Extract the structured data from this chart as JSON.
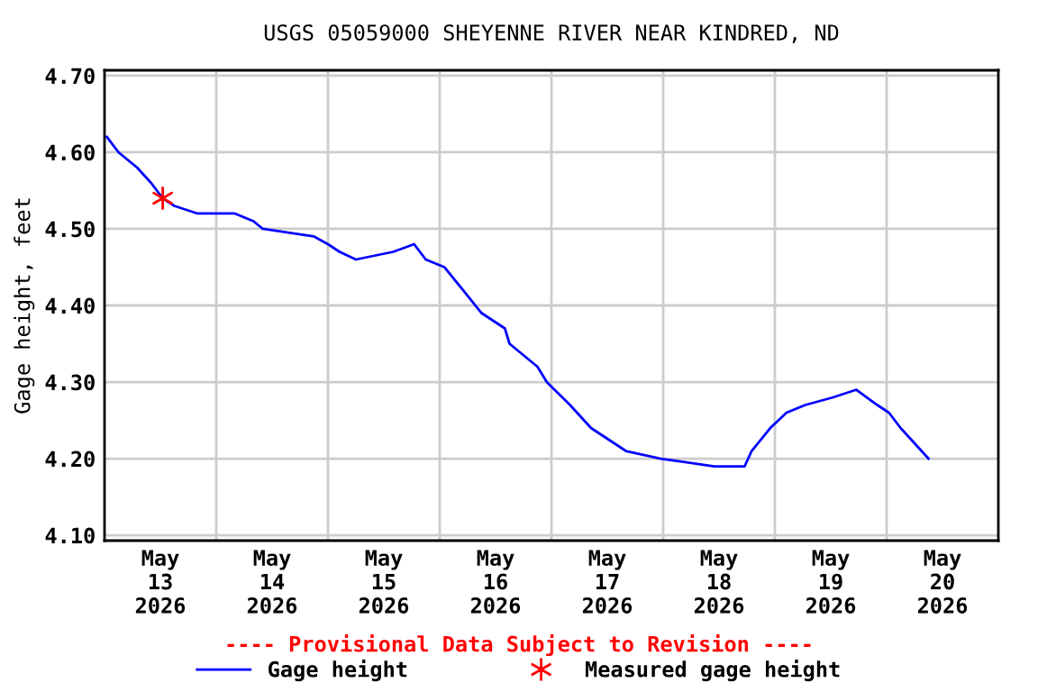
{
  "chart_data": {
    "type": "line",
    "title": "USGS 05059000 SHEYENNE RIVER NEAR KINDRED, ND",
    "ylabel": "Gage height, feet",
    "xlim": [
      "2026-05-13",
      "2026-05-21"
    ],
    "xticks": [
      {
        "value": "2026-05-13T12:00",
        "label": "May\n13\n2026"
      },
      {
        "value": "2026-05-14",
        "label": null
      },
      {
        "value": "2026-05-14T12:00",
        "label": "May\n14\n2026"
      },
      {
        "value": "2026-05-15",
        "label": null
      },
      {
        "value": "2026-05-15T12:00",
        "label": "May\n15\n2026"
      },
      {
        "value": "2026-05-16",
        "label": null
      },
      {
        "value": "2026-05-16T12:00",
        "label": "May\n16\n2026"
      },
      {
        "value": "2026-05-17",
        "label": null
      },
      {
        "value": "2026-05-17T12:00",
        "label": "May\n17\n2026"
      },
      {
        "value": "2026-05-18",
        "label": null
      },
      {
        "value": "2026-05-18T12:00",
        "label": "May\n18\n2026"
      },
      {
        "value": "2026-05-19",
        "label": null
      },
      {
        "value": "2026-05-19T12:00",
        "label": "May\n19\n2026"
      },
      {
        "value": "2026-05-20",
        "label": null
      },
      {
        "value": "2026-05-20T12:00",
        "label": "May\n20\n2026"
      }
    ],
    "ylim": [
      4.093,
      4.707
    ],
    "yticks": [
      {
        "value": 4.1,
        "label": "4.10"
      },
      {
        "value": 4.2,
        "label": "4.20"
      },
      {
        "value": 4.3,
        "label": "4.30"
      },
      {
        "value": 4.4,
        "label": "4.40"
      },
      {
        "value": 4.5,
        "label": "4.50"
      },
      {
        "value": 4.6,
        "label": "4.60"
      },
      {
        "value": 4.7,
        "label": "4.70"
      }
    ],
    "grid": true,
    "legend": "bottom",
    "annotations": [
      "---- Provisional Data Subject to Revision ----"
    ],
    "series": [
      {
        "name": "Gage height",
        "color": "#0000ff",
        "marker": "none",
        "x": [
          "2026-05-13T00:30",
          "2026-05-13T03:00",
          "2026-05-13T07:00",
          "2026-05-13T10:00",
          "2026-05-13T12:30",
          "2026-05-13T15:00",
          "2026-05-13T20:00",
          "2026-05-14T04:00",
          "2026-05-14T08:00",
          "2026-05-14T10:00",
          "2026-05-14T21:00",
          "2026-05-15T00:00",
          "2026-05-15T02:30",
          "2026-05-15T06:00",
          "2026-05-15T14:00",
          "2026-05-15T18:30",
          "2026-05-15T21:00",
          "2026-05-16T01:00",
          "2026-05-16T05:00",
          "2026-05-16T09:00",
          "2026-05-16T14:00",
          "2026-05-16T15:00",
          "2026-05-16T21:00",
          "2026-05-16T23:00",
          "2026-05-17T04:00",
          "2026-05-17T08:30",
          "2026-05-17T16:00",
          "2026-05-17T23:30",
          "2026-05-18T11:00",
          "2026-05-18T17:30",
          "2026-05-18T19:00",
          "2026-05-18T23:00",
          "2026-05-19T02:30",
          "2026-05-19T06:30",
          "2026-05-19T12:30",
          "2026-05-19T17:30",
          "2026-05-19T22:00",
          "2026-05-20T00:30",
          "2026-05-20T03:00",
          "2026-05-20T06:00",
          "2026-05-20T09:00"
        ],
        "values": [
          4.62,
          4.6,
          4.58,
          4.56,
          4.54,
          4.53,
          4.52,
          4.52,
          4.51,
          4.5,
          4.49,
          4.48,
          4.47,
          4.46,
          4.47,
          4.48,
          4.46,
          4.45,
          4.42,
          4.39,
          4.37,
          4.35,
          4.32,
          4.3,
          4.27,
          4.24,
          4.21,
          4.2,
          4.19,
          4.19,
          4.21,
          4.24,
          4.26,
          4.27,
          4.28,
          4.29,
          4.27,
          4.26,
          4.24,
          4.22,
          4.2
        ]
      },
      {
        "name": "Measured gage height",
        "type": "scatter",
        "color": "#ff0000",
        "marker": "cross",
        "x": [
          "2026-05-13T12:30"
        ],
        "values": [
          4.54
        ]
      }
    ]
  }
}
